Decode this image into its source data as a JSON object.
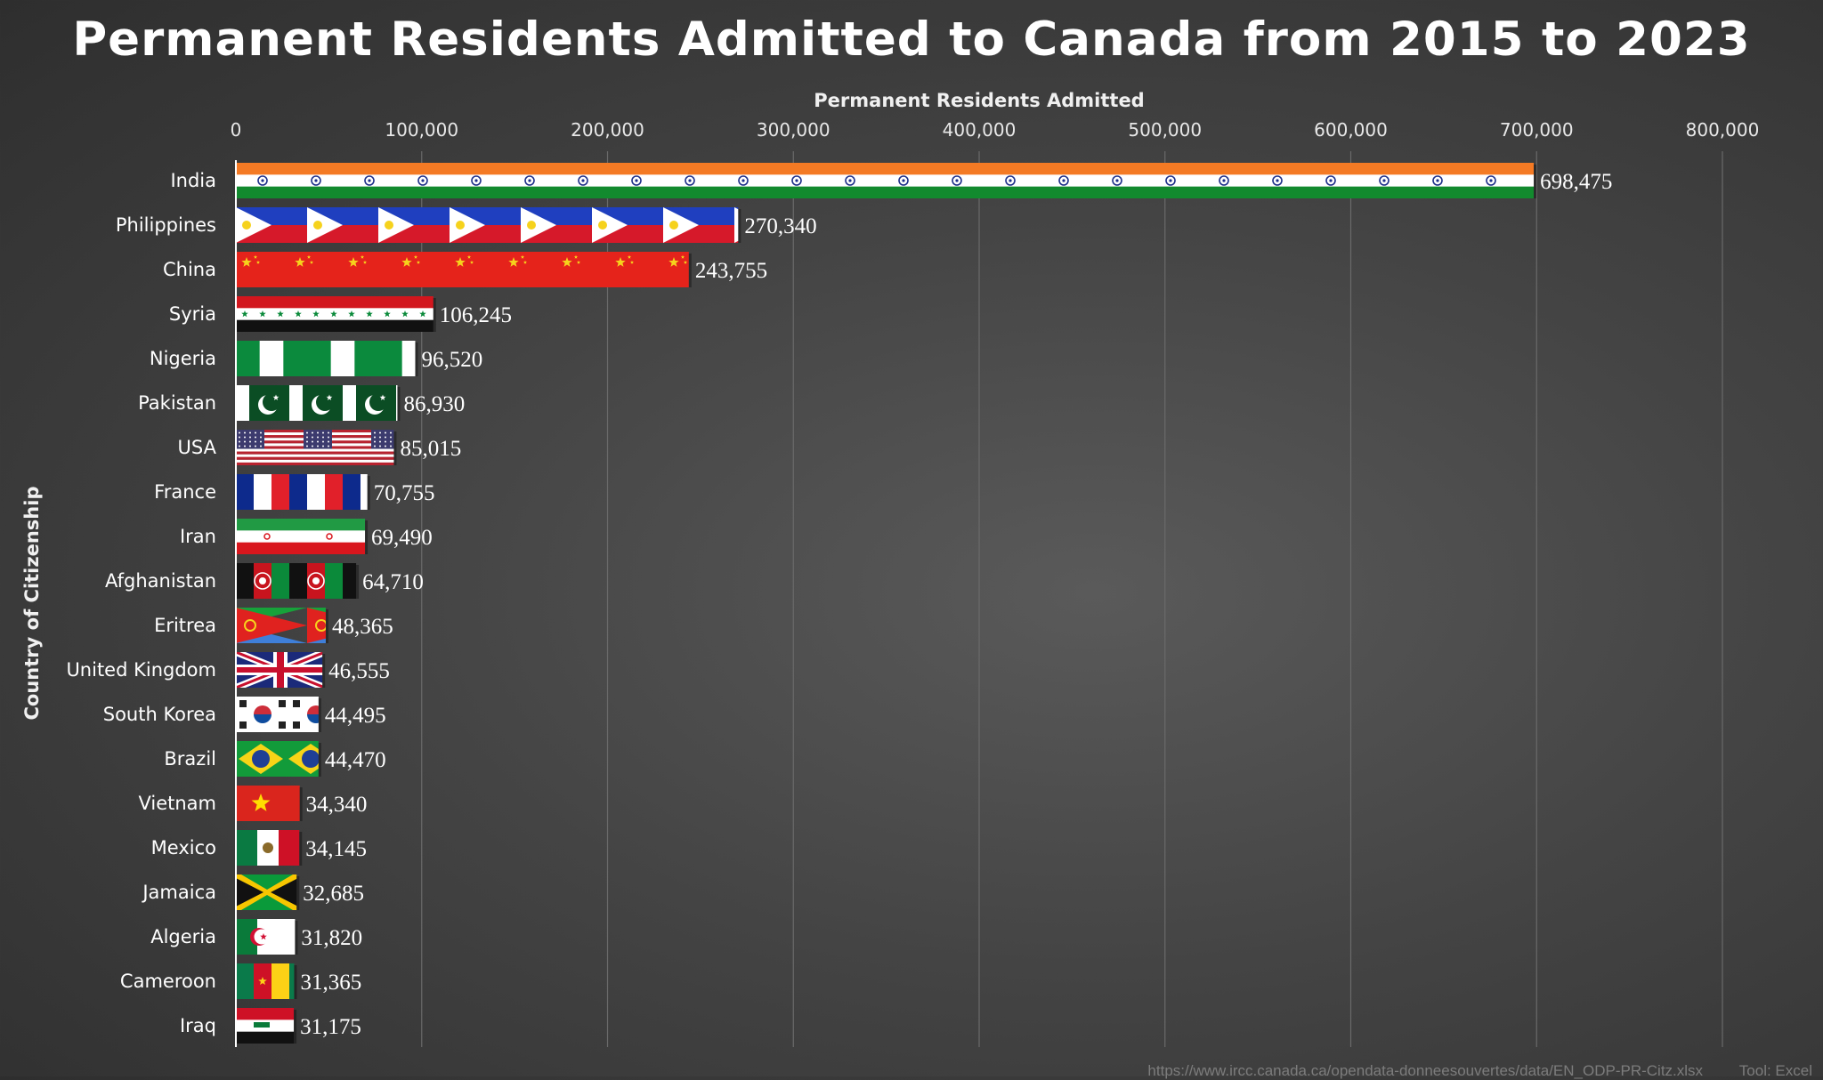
{
  "colors": {
    "grid": "#6a6a6a",
    "axis": "#ffffff",
    "label": "#ffffff"
  },
  "chart_data": {
    "type": "bar",
    "orientation": "horizontal",
    "title": "Permanent Residents Admitted to Canada from 2015 to 2023",
    "xlabel": "Permanent Residents Admitted",
    "ylabel": "Country of Citizenship",
    "xlim": [
      0,
      800000
    ],
    "xticks": [
      0,
      100000,
      200000,
      300000,
      400000,
      500000,
      600000,
      700000,
      800000
    ],
    "xtick_labels": [
      "0",
      "100,000",
      "200,000",
      "300,000",
      "400,000",
      "500,000",
      "600,000",
      "700,000",
      "800,000"
    ],
    "x_axis_position": "top",
    "grid": true,
    "bar_fill": "country flag pattern",
    "categories": [
      "India",
      "Philippines",
      "China",
      "Syria",
      "Nigeria",
      "Pakistan",
      "USA",
      "France",
      "Iran",
      "Afghanistan",
      "Eritrea",
      "United Kingdom",
      "South Korea",
      "Brazil",
      "Vietnam",
      "Mexico",
      "Jamaica",
      "Algeria",
      "Cameroon",
      "Iraq"
    ],
    "values": [
      698475,
      270340,
      243755,
      106245,
      96520,
      86930,
      85015,
      70755,
      69490,
      64710,
      48365,
      46555,
      44495,
      44470,
      34340,
      34145,
      32685,
      31820,
      31365,
      31175
    ],
    "value_labels": [
      "698,475",
      "270,340",
      "243,755",
      "106,245",
      "96,520",
      "86,930",
      "85,015",
      "70,755",
      "69,490",
      "64,710",
      "48,365",
      "46,555",
      "44,495",
      "44,470",
      "34,340",
      "34,145",
      "32,685",
      "31,820",
      "31,365",
      "31,175"
    ]
  },
  "footer": {
    "source": "https://www.ircc.canada.ca/opendata-donneesouvertes/data/EN_ODP-PR-Citz.xlsx",
    "tool": "Tool: Excel"
  }
}
